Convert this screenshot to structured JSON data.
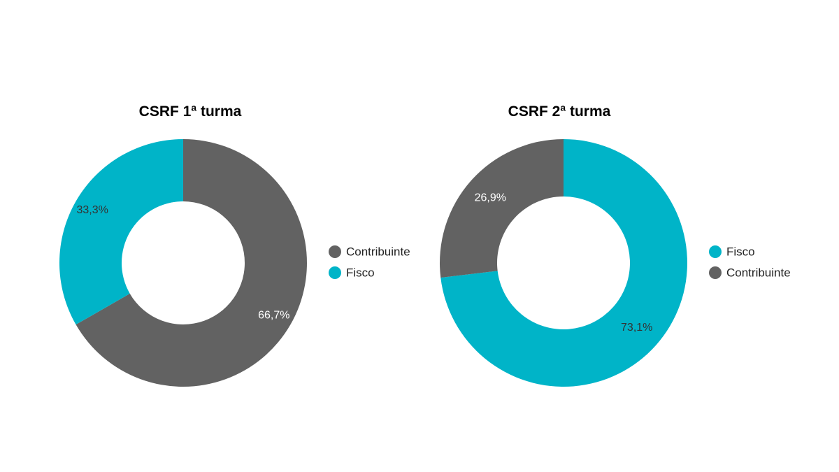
{
  "colors": {
    "gray": "#626262",
    "teal": "#00b4c8",
    "background": "#ffffff"
  },
  "chart_data": [
    {
      "type": "pie",
      "title": "CSRF 1ª turma",
      "slices": [
        {
          "name": "Contribuinte",
          "value": 66.7,
          "label": "66,7%",
          "color": "#626262"
        },
        {
          "name": "Fisco",
          "value": 33.3,
          "label": "33,3%",
          "color": "#00b4c8"
        }
      ],
      "legend": [
        "Contribuinte",
        "Fisco"
      ],
      "legend_position": "right",
      "donut": true
    },
    {
      "type": "pie",
      "title": "CSRF 2ª turma",
      "slices": [
        {
          "name": "Fisco",
          "value": 73.1,
          "label": "73,1%",
          "color": "#00b4c8"
        },
        {
          "name": "Contribuinte",
          "value": 26.9,
          "label": "26,9%",
          "color": "#626262"
        }
      ],
      "legend": [
        "Fisco",
        "Contribuinte"
      ],
      "legend_position": "right",
      "donut": true
    }
  ]
}
